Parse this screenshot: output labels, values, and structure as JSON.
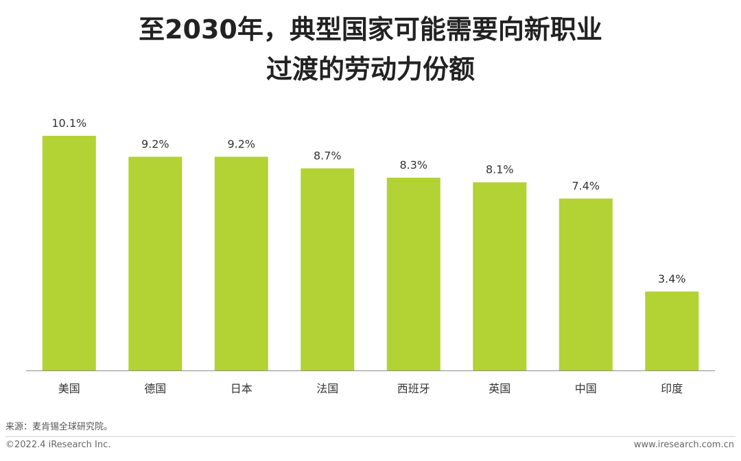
{
  "header": {
    "title_line1": "至2030年，典型国家可能需要向新职业",
    "title_line2": "过渡的劳动力份额"
  },
  "chart_data": {
    "type": "bar",
    "categories": [
      "美国",
      "德国",
      "日本",
      "法国",
      "西班牙",
      "英国",
      "中国",
      "印度"
    ],
    "values": [
      10.1,
      9.2,
      9.2,
      8.7,
      8.3,
      8.1,
      7.4,
      3.4
    ],
    "data_labels": [
      "10.1%",
      "9.2%",
      "9.2%",
      "8.7%",
      "8.3%",
      "8.1%",
      "7.4%",
      "3.4%"
    ],
    "unit": "%",
    "ylim": [
      0,
      10.1
    ],
    "grid": false,
    "bar_color": "#b3d234"
  },
  "footer": {
    "source": "来源：麦肯锡全球研究院。",
    "copyright": "©2022.4 iResearch Inc.",
    "website": "www.iresearch.com.cn"
  }
}
